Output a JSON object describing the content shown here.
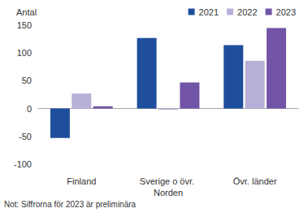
{
  "chart_data": {
    "type": "bar",
    "y_label": "Antal",
    "note": "Not: Siffrorna för 2023 är preliminära",
    "categories": [
      "Finland",
      "Sverige o övr. Norden",
      "Övr. länder"
    ],
    "series": [
      {
        "name": "2021",
        "color": "#1f4e9c",
        "values": [
          -53,
          127,
          114
        ]
      },
      {
        "name": "2022",
        "color": "#b8b0d8",
        "values": [
          27,
          -2,
          86
        ]
      },
      {
        "name": "2023",
        "color": "#7254a6",
        "values": [
          4,
          47,
          145
        ]
      }
    ],
    "ylim": [
      -100,
      150
    ],
    "yticks": [
      -100,
      -50,
      0,
      50,
      100,
      150
    ],
    "grid": false,
    "legend": "top-right"
  }
}
